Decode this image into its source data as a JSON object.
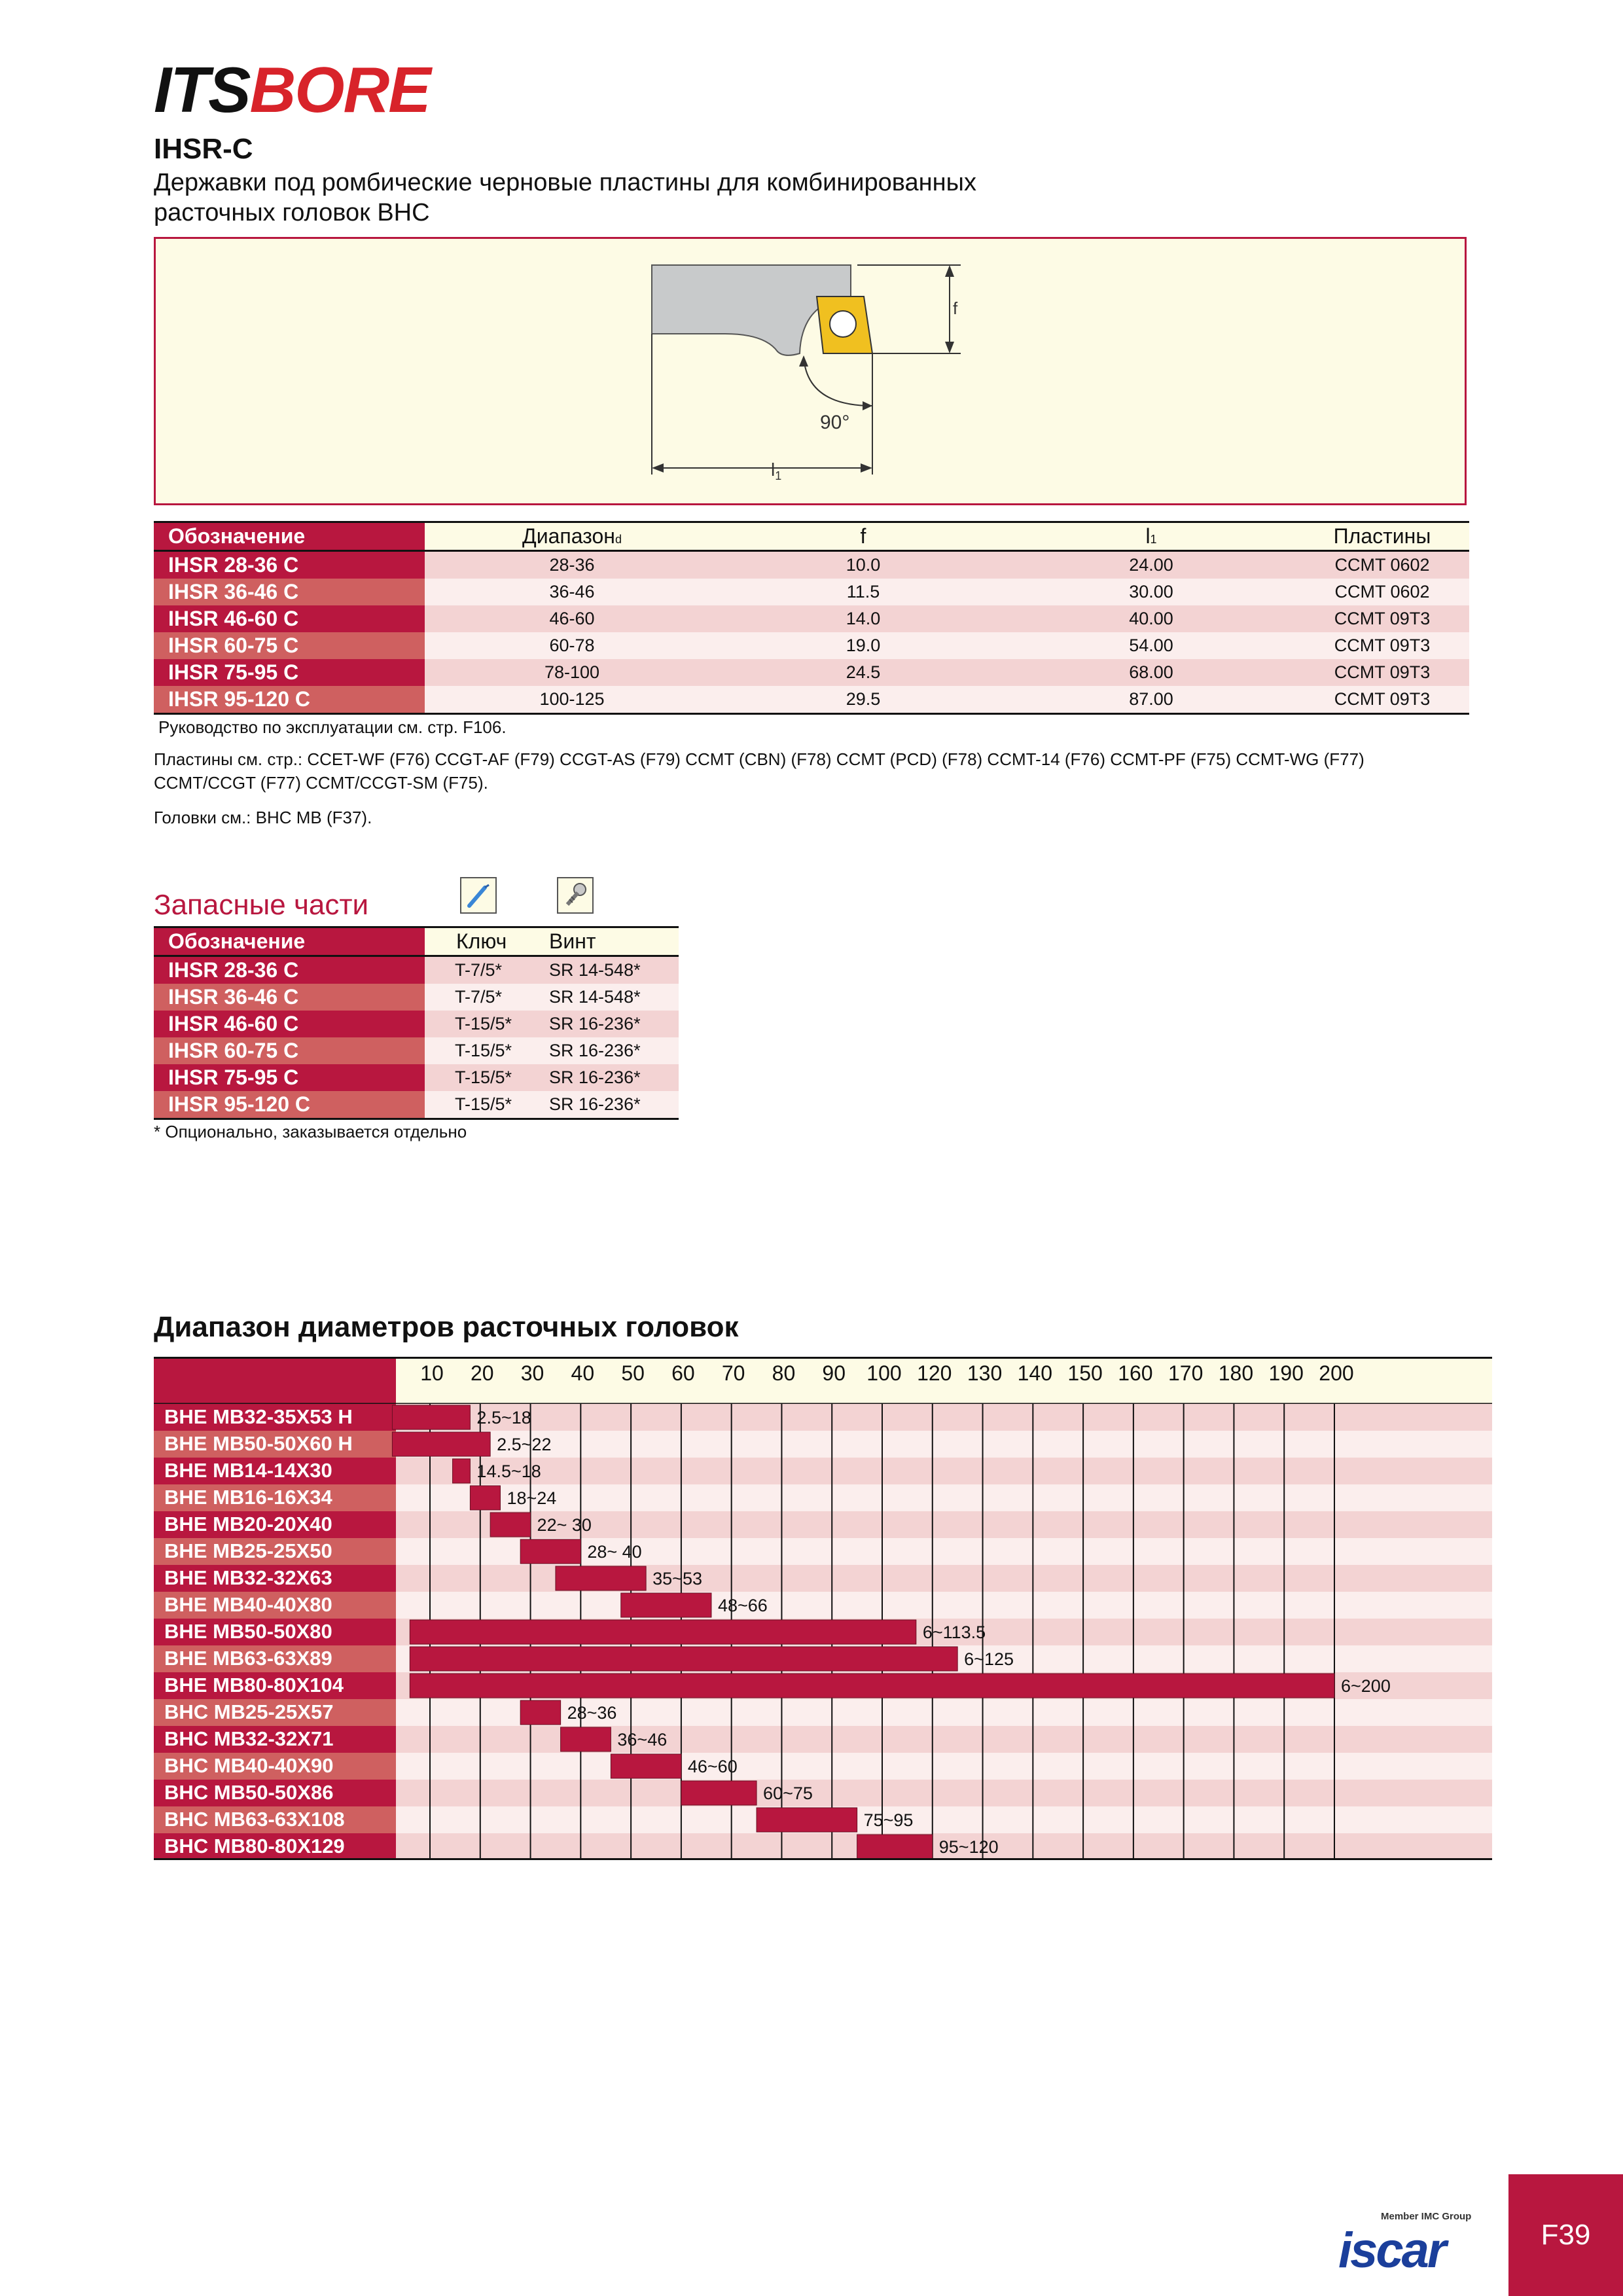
{
  "brand": {
    "part1": "ITS",
    "part2": "BORE"
  },
  "model": "IHSR-C",
  "subtitle_line1": "Державки под ромбические черновые пластины для комбинированных",
  "subtitle_line2": "расточных головок BHC",
  "drawing": {
    "label_f": "f",
    "label_angle": "90°",
    "label_l": "l",
    "label_l_sub": "1"
  },
  "main_table": {
    "headers": {
      "designation": "Обозначение",
      "range": "Диапазон",
      "range_sub": "d",
      "f": "f",
      "l": "l",
      "l_sub": "1",
      "inserts": "Пластины"
    },
    "rows": [
      {
        "name": "IHSR 28-36 C",
        "range": "28-36",
        "f": "10.0",
        "l": "24.00",
        "insert": "CCMT 0602"
      },
      {
        "name": "IHSR 36-46 C",
        "range": "36-46",
        "f": "11.5",
        "l": "30.00",
        "insert": "CCMT 0602"
      },
      {
        "name": "IHSR 46-60 C",
        "range": "46-60",
        "f": "14.0",
        "l": "40.00",
        "insert": "CCMT 09T3"
      },
      {
        "name": "IHSR 60-75 C",
        "range": "60-78",
        "f": "19.0",
        "l": "54.00",
        "insert": "CCMT 09T3"
      },
      {
        "name": "IHSR 75-95 C",
        "range": "78-100",
        "f": "24.5",
        "l": "68.00",
        "insert": "CCMT 09T3"
      },
      {
        "name": "IHSR 95-120 C",
        "range": "100-125",
        "f": "29.5",
        "l": "87.00",
        "insert": "CCMT 09T3"
      }
    ]
  },
  "notes": {
    "manual": "Руководство по эксплуатации см. стр. F106.",
    "inserts_line1": "Пластины см. стр.: CCET-WF (F76)  CCGT-AF (F79)  CCGT-AS (F79)  CCMT (CBN) (F78)  CCMT (PCD) (F78)  CCMT-14 (F76)  CCMT-PF (F75)  CCMT-WG (F77)",
    "inserts_line2": "CCMT/CCGT (F77)  CCMT/CCGT-SM (F75).",
    "heads": "Головки см.: BHC MB (F37)."
  },
  "spares": {
    "title": "Запасные части",
    "icons": [
      "key-icon",
      "screw-icon"
    ],
    "headers": {
      "designation": "Обозначение",
      "key": "Ключ",
      "screw": "Винт"
    },
    "rows": [
      {
        "name": "IHSR 28-36 C",
        "key": "T-7/5*",
        "screw": "SR 14-548*"
      },
      {
        "name": "IHSR 36-46 C",
        "key": "T-7/5*",
        "screw": "SR 14-548*"
      },
      {
        "name": "IHSR 46-60 C",
        "key": "T-15/5*",
        "screw": "SR 16-236*"
      },
      {
        "name": "IHSR 60-75 C",
        "key": "T-15/5*",
        "screw": "SR 16-236*"
      },
      {
        "name": "IHSR 75-95 C",
        "key": "T-15/5*",
        "screw": "SR 16-236*"
      },
      {
        "name": "IHSR 95-120 C",
        "key": "T-15/5*",
        "screw": "SR 16-236*"
      }
    ],
    "footnote": "*  Опционально, заказывается отдельно"
  },
  "range_title": "Диапазон диаметров расточных головок",
  "chart_data": {
    "type": "bar",
    "orientation": "horizontal-range",
    "title": "Диапазон диаметров расточных головок",
    "x_ticks": [
      "10",
      "20",
      "30",
      "40",
      "50",
      "60",
      "70",
      "80",
      "90",
      "100",
      "120",
      "130",
      "140",
      "150",
      "160",
      "170",
      "180",
      "190",
      "200"
    ],
    "rows": [
      {
        "name": "BHE MB32-35X53 H",
        "min": 2.5,
        "max": 18,
        "label": "2.5~18"
      },
      {
        "name": "BHE MB50-50X60 H",
        "min": 2.5,
        "max": 22,
        "label": "2.5~22"
      },
      {
        "name": "BHE MB14-14X30",
        "min": 14.5,
        "max": 18,
        "label": "14.5~18"
      },
      {
        "name": "BHE MB16-16X34",
        "min": 18,
        "max": 24,
        "label": "18~24"
      },
      {
        "name": "BHE MB20-20X40",
        "min": 22,
        "max": 30,
        "label": "22~ 30"
      },
      {
        "name": "BHE MB25-25X50",
        "min": 28,
        "max": 40,
        "label": "28~ 40"
      },
      {
        "name": "BHE MB32-32X63",
        "min": 35,
        "max": 53,
        "label": "35~53"
      },
      {
        "name": "BHE MB40-40X80",
        "min": 48,
        "max": 66,
        "label": "48~66"
      },
      {
        "name": "BHE MB50-50X80",
        "min": 6,
        "max": 113.5,
        "label": "6~113.5"
      },
      {
        "name": "BHE MB63-63X89",
        "min": 6,
        "max": 125,
        "label": "6~125"
      },
      {
        "name": "BHE MB80-80X104",
        "min": 6,
        "max": 200,
        "label": "6~200"
      },
      {
        "name": "BHC MB25-25X57",
        "min": 28,
        "max": 36,
        "label": "28~36"
      },
      {
        "name": "BHC MB32-32X71",
        "min": 36,
        "max": 46,
        "label": "36~46"
      },
      {
        "name": "BHC MB40-40X90",
        "min": 46,
        "max": 60,
        "label": "46~60"
      },
      {
        "name": "BHC MB50-50X86",
        "min": 60,
        "max": 75,
        "label": "60~75"
      },
      {
        "name": "BHC MB63-63X108",
        "min": 75,
        "max": 95,
        "label": "75~95"
      },
      {
        "name": "BHC MB80-80X129",
        "min": 95,
        "max": 120,
        "label": "95~120"
      }
    ],
    "colors": {
      "bar": "#b8173f",
      "row_odd": "#f3d3d3",
      "row_even": "#fbeeed",
      "header": "#fdfbe5"
    }
  },
  "footer": {
    "page": "F39",
    "member": "Member IMC Group",
    "logo": "iscar"
  }
}
